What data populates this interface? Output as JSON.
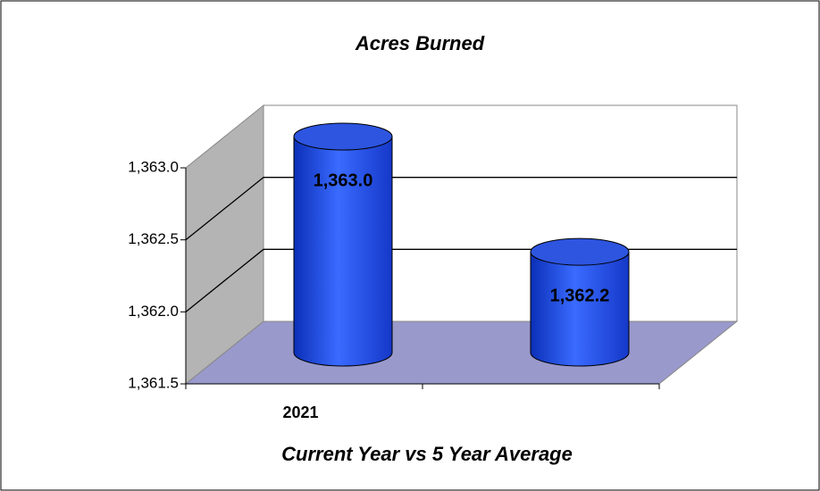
{
  "chart_data": {
    "type": "cylinder",
    "title": "Acres Burned",
    "x_label": "Current Year vs 5 Year Average",
    "categories": [
      "2021",
      null
    ],
    "values": [
      1363.0,
      1362.2
    ],
    "value_labels": [
      "1,363.0",
      "1,362.2"
    ],
    "color": "#1f4fe8",
    "ylim": [
      1361.5,
      1363.0
    ],
    "yticks": [
      {
        "value": 1361.5,
        "label": "1,361.5"
      },
      {
        "value": 1362.0,
        "label": "1,362.0"
      },
      {
        "value": 1362.5,
        "label": "1,362.5"
      },
      {
        "value": 1363.0,
        "label": "1,363.0"
      }
    ],
    "grid": true
  }
}
